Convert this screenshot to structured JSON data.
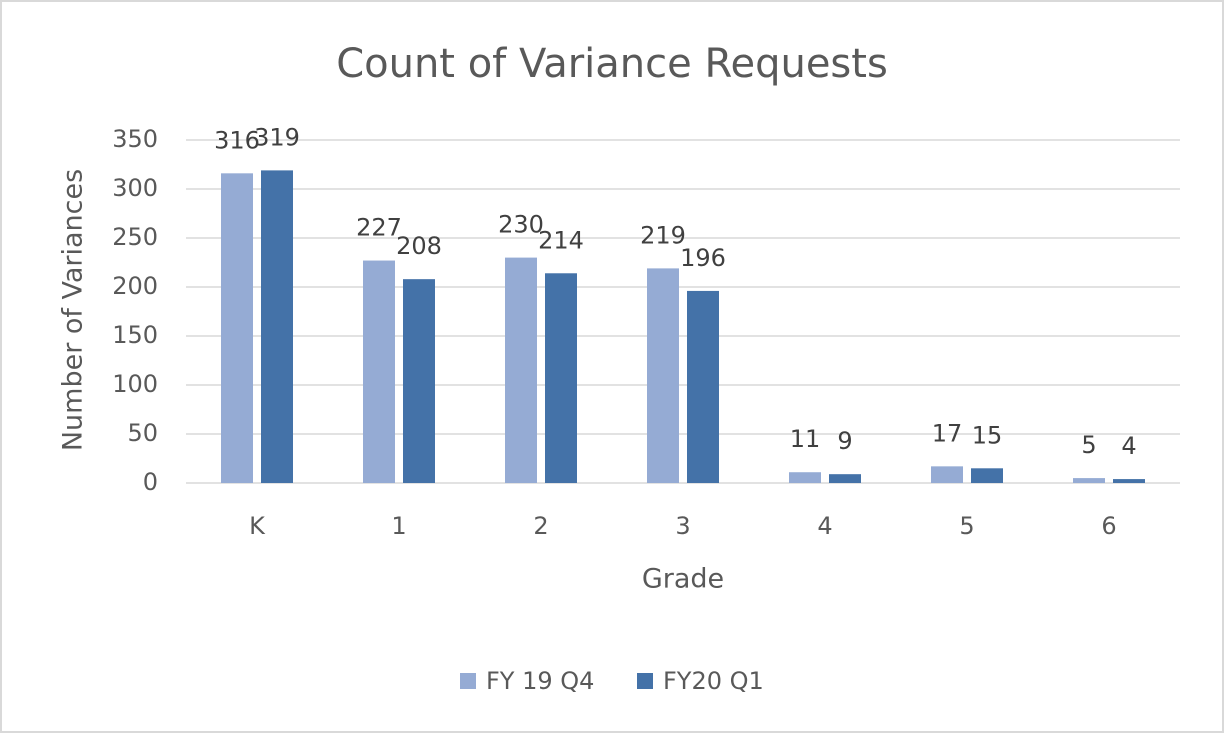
{
  "chart_data": {
    "type": "bar",
    "title": "Count of Variance Requests",
    "x_label": "Grade",
    "y_label": "Number of Variances",
    "categories": [
      "K",
      "1",
      "2",
      "3",
      "4",
      "5",
      "6"
    ],
    "series": [
      {
        "name": "FY 19 Q4",
        "color": "#95abd4",
        "values": [
          316,
          227,
          230,
          219,
          11,
          17,
          5
        ]
      },
      {
        "name": "FY20 Q1",
        "color": "#4472a8",
        "values": [
          319,
          208,
          214,
          196,
          9,
          15,
          4
        ]
      }
    ],
    "ylim": [
      0,
      350
    ],
    "yticks": [
      0,
      50,
      100,
      150,
      200,
      250,
      300,
      350
    ],
    "grid": true,
    "legend": "bottom"
  }
}
